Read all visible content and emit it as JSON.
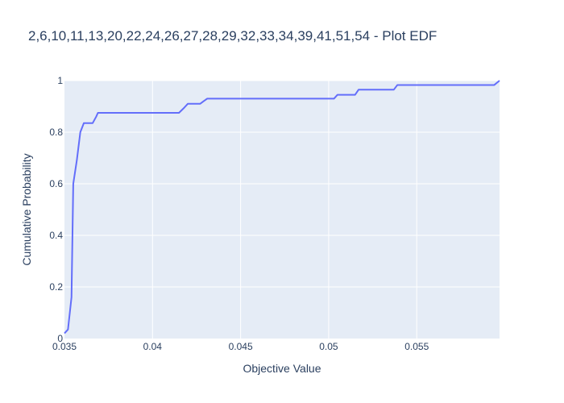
{
  "chart_data": {
    "type": "line",
    "title": "2,6,10,11,13,20,22,24,26,27,28,29,32,33,34,39,41,51,54 - Plot EDF",
    "xlabel": "Objective Value",
    "ylabel": "Cumulative Probability",
    "xlim": [
      0.035,
      0.0597
    ],
    "ylim": [
      0,
      1
    ],
    "x_ticks": [
      0.035,
      0.04,
      0.045,
      0.05,
      0.055
    ],
    "x_tick_labels": [
      "0.035",
      "0.04",
      "0.045",
      "0.05",
      "0.055"
    ],
    "y_ticks": [
      0,
      0.2,
      0.4,
      0.6,
      0.8,
      1
    ],
    "y_tick_labels": [
      "0",
      "0.2",
      "0.4",
      "0.6",
      "0.8",
      "1"
    ],
    "grid": true,
    "colors": {
      "line": "#636efa",
      "plot_bg": "#e5ecf6",
      "grid": "#ffffff",
      "text": "#2a3f5f"
    },
    "series": [
      {
        "x": [
          0.035,
          0.0352,
          0.0354,
          0.0355,
          0.0357,
          0.0359,
          0.0361,
          0.0363,
          0.0366,
          0.0368,
          0.0369,
          0.0375,
          0.0385,
          0.0395,
          0.0405,
          0.0415,
          0.0418,
          0.042,
          0.0427,
          0.0429,
          0.0431,
          0.044,
          0.046,
          0.048,
          0.05,
          0.0503,
          0.0505,
          0.0515,
          0.0517,
          0.0522,
          0.0537,
          0.0539,
          0.0545,
          0.0555,
          0.0575,
          0.0594,
          0.0597
        ],
        "y": [
          0.02,
          0.035,
          0.16,
          0.6,
          0.69,
          0.8,
          0.835,
          0.835,
          0.835,
          0.86,
          0.875,
          0.875,
          0.875,
          0.875,
          0.875,
          0.875,
          0.895,
          0.91,
          0.91,
          0.92,
          0.93,
          0.93,
          0.93,
          0.93,
          0.93,
          0.93,
          0.945,
          0.945,
          0.965,
          0.965,
          0.965,
          0.983,
          0.983,
          0.983,
          0.983,
          0.983,
          1.0
        ]
      }
    ]
  }
}
